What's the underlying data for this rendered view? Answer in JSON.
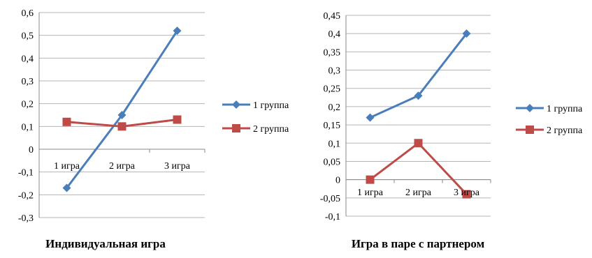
{
  "chart_data": [
    {
      "type": "line",
      "title": "Индивидуальная игра",
      "categories": [
        "1 игра",
        "2 игра",
        "3 игра"
      ],
      "ylim": [
        -0.3,
        0.6
      ],
      "yticks": [
        "0,6",
        "0,5",
        "0,4",
        "0,3",
        "0,2",
        "0,1",
        "0",
        "-0,1",
        "-0,2",
        "-0,3"
      ],
      "grid": true,
      "legend": "right",
      "series": [
        {
          "name": "1 группа",
          "values": [
            -0.17,
            0.15,
            0.52
          ],
          "color": "#4a7ebb",
          "marker": "diamond"
        },
        {
          "name": "2 группа",
          "values": [
            0.12,
            0.1,
            0.13
          ],
          "color": "#be4b48",
          "marker": "square"
        }
      ]
    },
    {
      "type": "line",
      "title": "Игра в паре с партнером",
      "categories": [
        "1 игра",
        "2 игра",
        "3 игра"
      ],
      "ylim": [
        -0.1,
        0.45
      ],
      "yticks": [
        "0,45",
        "0,4",
        "0,35",
        "0,3",
        "0,25",
        "0,2",
        "0,15",
        "0,1",
        "0,05",
        "0",
        "-0,05",
        "-0,1"
      ],
      "grid": true,
      "legend": "right",
      "series": [
        {
          "name": "1 группа",
          "values": [
            0.17,
            0.23,
            0.4
          ],
          "color": "#4a7ebb",
          "marker": "diamond"
        },
        {
          "name": "2 группа",
          "values": [
            0.0,
            0.1,
            -0.04
          ],
          "color": "#be4b48",
          "marker": "square"
        }
      ]
    }
  ]
}
